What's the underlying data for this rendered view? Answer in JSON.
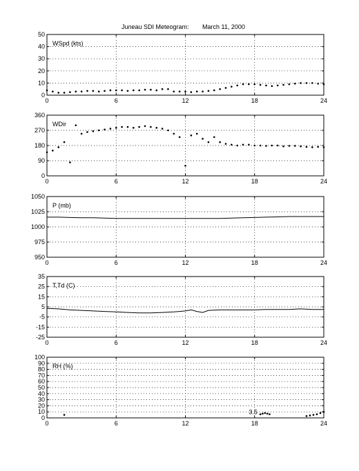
{
  "title_left": "Juneau SDI Meteogram:",
  "title_right": "March 11, 2000",
  "chart_data": [
    {
      "type": "scatter",
      "label": "WSpd (kts)",
      "xlim": [
        0,
        24
      ],
      "ylim": [
        0,
        50
      ],
      "xticks": [
        0,
        6,
        12,
        18,
        24
      ],
      "yticks": [
        0,
        10,
        20,
        30,
        40,
        50
      ],
      "grid": true,
      "x": [
        0,
        0.5,
        1,
        1.5,
        2,
        2.5,
        3,
        3.5,
        4,
        4.5,
        5,
        5.5,
        6,
        6.5,
        7,
        7.5,
        8,
        8.5,
        9,
        9.5,
        10,
        10.5,
        11,
        11.5,
        12,
        12.5,
        13,
        13.5,
        14,
        14.5,
        15,
        15.5,
        16,
        16.5,
        17,
        17.5,
        18,
        18.5,
        19,
        19.5,
        20,
        20.5,
        21,
        21.5,
        22,
        22.5,
        23,
        23.5,
        24
      ],
      "y": [
        4,
        3,
        2,
        2,
        2.5,
        3,
        3,
        3.5,
        3.5,
        3,
        3.5,
        4,
        4,
        4,
        3.5,
        4,
        4,
        4.5,
        4.5,
        4,
        5,
        5,
        3,
        3,
        3,
        2.5,
        3,
        3,
        3.5,
        4,
        5,
        6,
        7,
        8,
        9,
        9,
        9,
        8.5,
        8,
        7.5,
        8,
        8.5,
        9,
        9.5,
        10,
        10,
        10,
        9.5,
        9
      ]
    },
    {
      "type": "scatter",
      "label": "WDir",
      "xlim": [
        0,
        24
      ],
      "ylim": [
        0,
        360
      ],
      "xticks": [
        0,
        6,
        12,
        18,
        24
      ],
      "yticks": [
        0,
        90,
        180,
        270,
        360
      ],
      "grid": true,
      "x": [
        0,
        0.5,
        1,
        1.5,
        2,
        2.5,
        3,
        3.5,
        4,
        4.5,
        5,
        5.5,
        6,
        6.5,
        7,
        7.5,
        8,
        8.5,
        9,
        9.5,
        10,
        10.5,
        11,
        11.5,
        12,
        12.5,
        13,
        13.5,
        14,
        14.5,
        15,
        15.5,
        16,
        16.5,
        17,
        17.5,
        18,
        18.5,
        19,
        19.5,
        20,
        20.5,
        21,
        21.5,
        22,
        22.5,
        23,
        23.5,
        24
      ],
      "y": [
        140,
        150,
        170,
        200,
        80,
        300,
        250,
        260,
        265,
        270,
        275,
        280,
        285,
        290,
        290,
        285,
        290,
        295,
        290,
        285,
        280,
        270,
        250,
        230,
        60,
        240,
        250,
        220,
        200,
        230,
        200,
        190,
        185,
        180,
        185,
        185,
        180,
        180,
        178,
        180,
        180,
        175,
        178,
        178,
        175,
        172,
        170,
        172,
        170
      ]
    },
    {
      "type": "line",
      "label": "P (mb)",
      "xlim": [
        0,
        24
      ],
      "ylim": [
        950,
        1050
      ],
      "xticks": [
        0,
        6,
        12,
        18,
        24
      ],
      "yticks": [
        950,
        975,
        1000,
        1025,
        1050
      ],
      "grid": true,
      "x": [
        0,
        1,
        2,
        3,
        4,
        5,
        6,
        7,
        8,
        9,
        10,
        11,
        12,
        13,
        14,
        15,
        16,
        17,
        18,
        19,
        20,
        21,
        22,
        23,
        24
      ],
      "y": [
        1016,
        1016,
        1015.5,
        1015,
        1015,
        1014.5,
        1014,
        1014,
        1014,
        1014,
        1014,
        1014,
        1014,
        1014,
        1014,
        1014,
        1014.5,
        1015,
        1015.5,
        1016,
        1016.5,
        1017,
        1017,
        1017,
        1017
      ]
    },
    {
      "type": "line",
      "label": "T,Td (C)",
      "xlim": [
        0,
        24
      ],
      "ylim": [
        -25,
        35
      ],
      "xticks": [
        0,
        6,
        12,
        18,
        24
      ],
      "yticks": [
        -25,
        -15,
        -5,
        5,
        15,
        25,
        35
      ],
      "grid": true,
      "x": [
        0,
        1,
        2,
        3,
        4,
        5,
        6,
        7,
        8,
        9,
        10,
        11,
        12,
        12.5,
        13,
        13.5,
        14,
        15,
        16,
        17,
        18,
        19,
        20,
        21,
        22,
        23,
        24
      ],
      "y": [
        3.5,
        3,
        2,
        1.5,
        1,
        0.5,
        0,
        -0.5,
        -1,
        -1,
        -0.5,
        0,
        1,
        2,
        0.5,
        -0.5,
        1.5,
        2,
        2,
        2,
        2,
        2.5,
        2.5,
        2.5,
        3,
        2.5,
        2.5
      ]
    },
    {
      "type": "scatter",
      "label": "RH (%)",
      "xlim": [
        0,
        24
      ],
      "ylim": [
        0,
        100
      ],
      "xticks": [
        0,
        6,
        12,
        18,
        24
      ],
      "yticks": [
        0,
        10,
        20,
        30,
        40,
        50,
        60,
        70,
        80,
        90,
        100
      ],
      "grid": true,
      "annotations": [
        {
          "x": 17.5,
          "y": 5,
          "text": "3.5"
        }
      ],
      "x": [
        1.5,
        18.5,
        18.7,
        18.9,
        19.1,
        19.3,
        22.5,
        22.8,
        23.1,
        23.4,
        23.7,
        24
      ],
      "y": [
        5,
        6,
        7,
        8,
        7,
        6,
        3,
        4,
        5,
        6,
        8,
        10
      ]
    }
  ]
}
